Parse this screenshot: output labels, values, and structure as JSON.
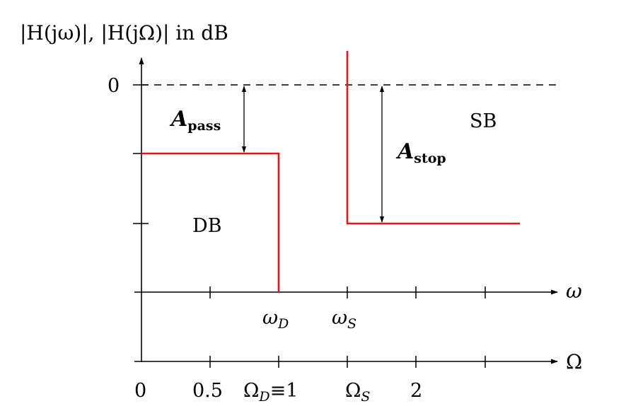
{
  "diagram": {
    "y_axis_label": "|H(jω)|, |H(jΩ)| in dB",
    "y_zero_label": "0",
    "omega_axis_label": "ω",
    "Omega_axis_label": "Ω",
    "omega_tick_labels": {
      "omega_D": {
        "base": "ω",
        "sub": "D"
      },
      "omega_S": {
        "base": "ω",
        "sub": "S"
      }
    },
    "Omega_tick_labels": {
      "zero": "0",
      "half": "0.5",
      "Omega_D": {
        "base": "Ω",
        "sub": "D",
        "rest": "≡1"
      },
      "Omega_S": {
        "base": "Ω",
        "sub": "S"
      },
      "two": "2"
    },
    "a_pass": {
      "base": "A",
      "sub": "pass"
    },
    "a_stop": {
      "base": "A",
      "sub": "stop"
    },
    "region_db": "DB",
    "region_sb": "SB",
    "colors": {
      "tolerance": "#e8141a",
      "axis": "#000000"
    }
  }
}
